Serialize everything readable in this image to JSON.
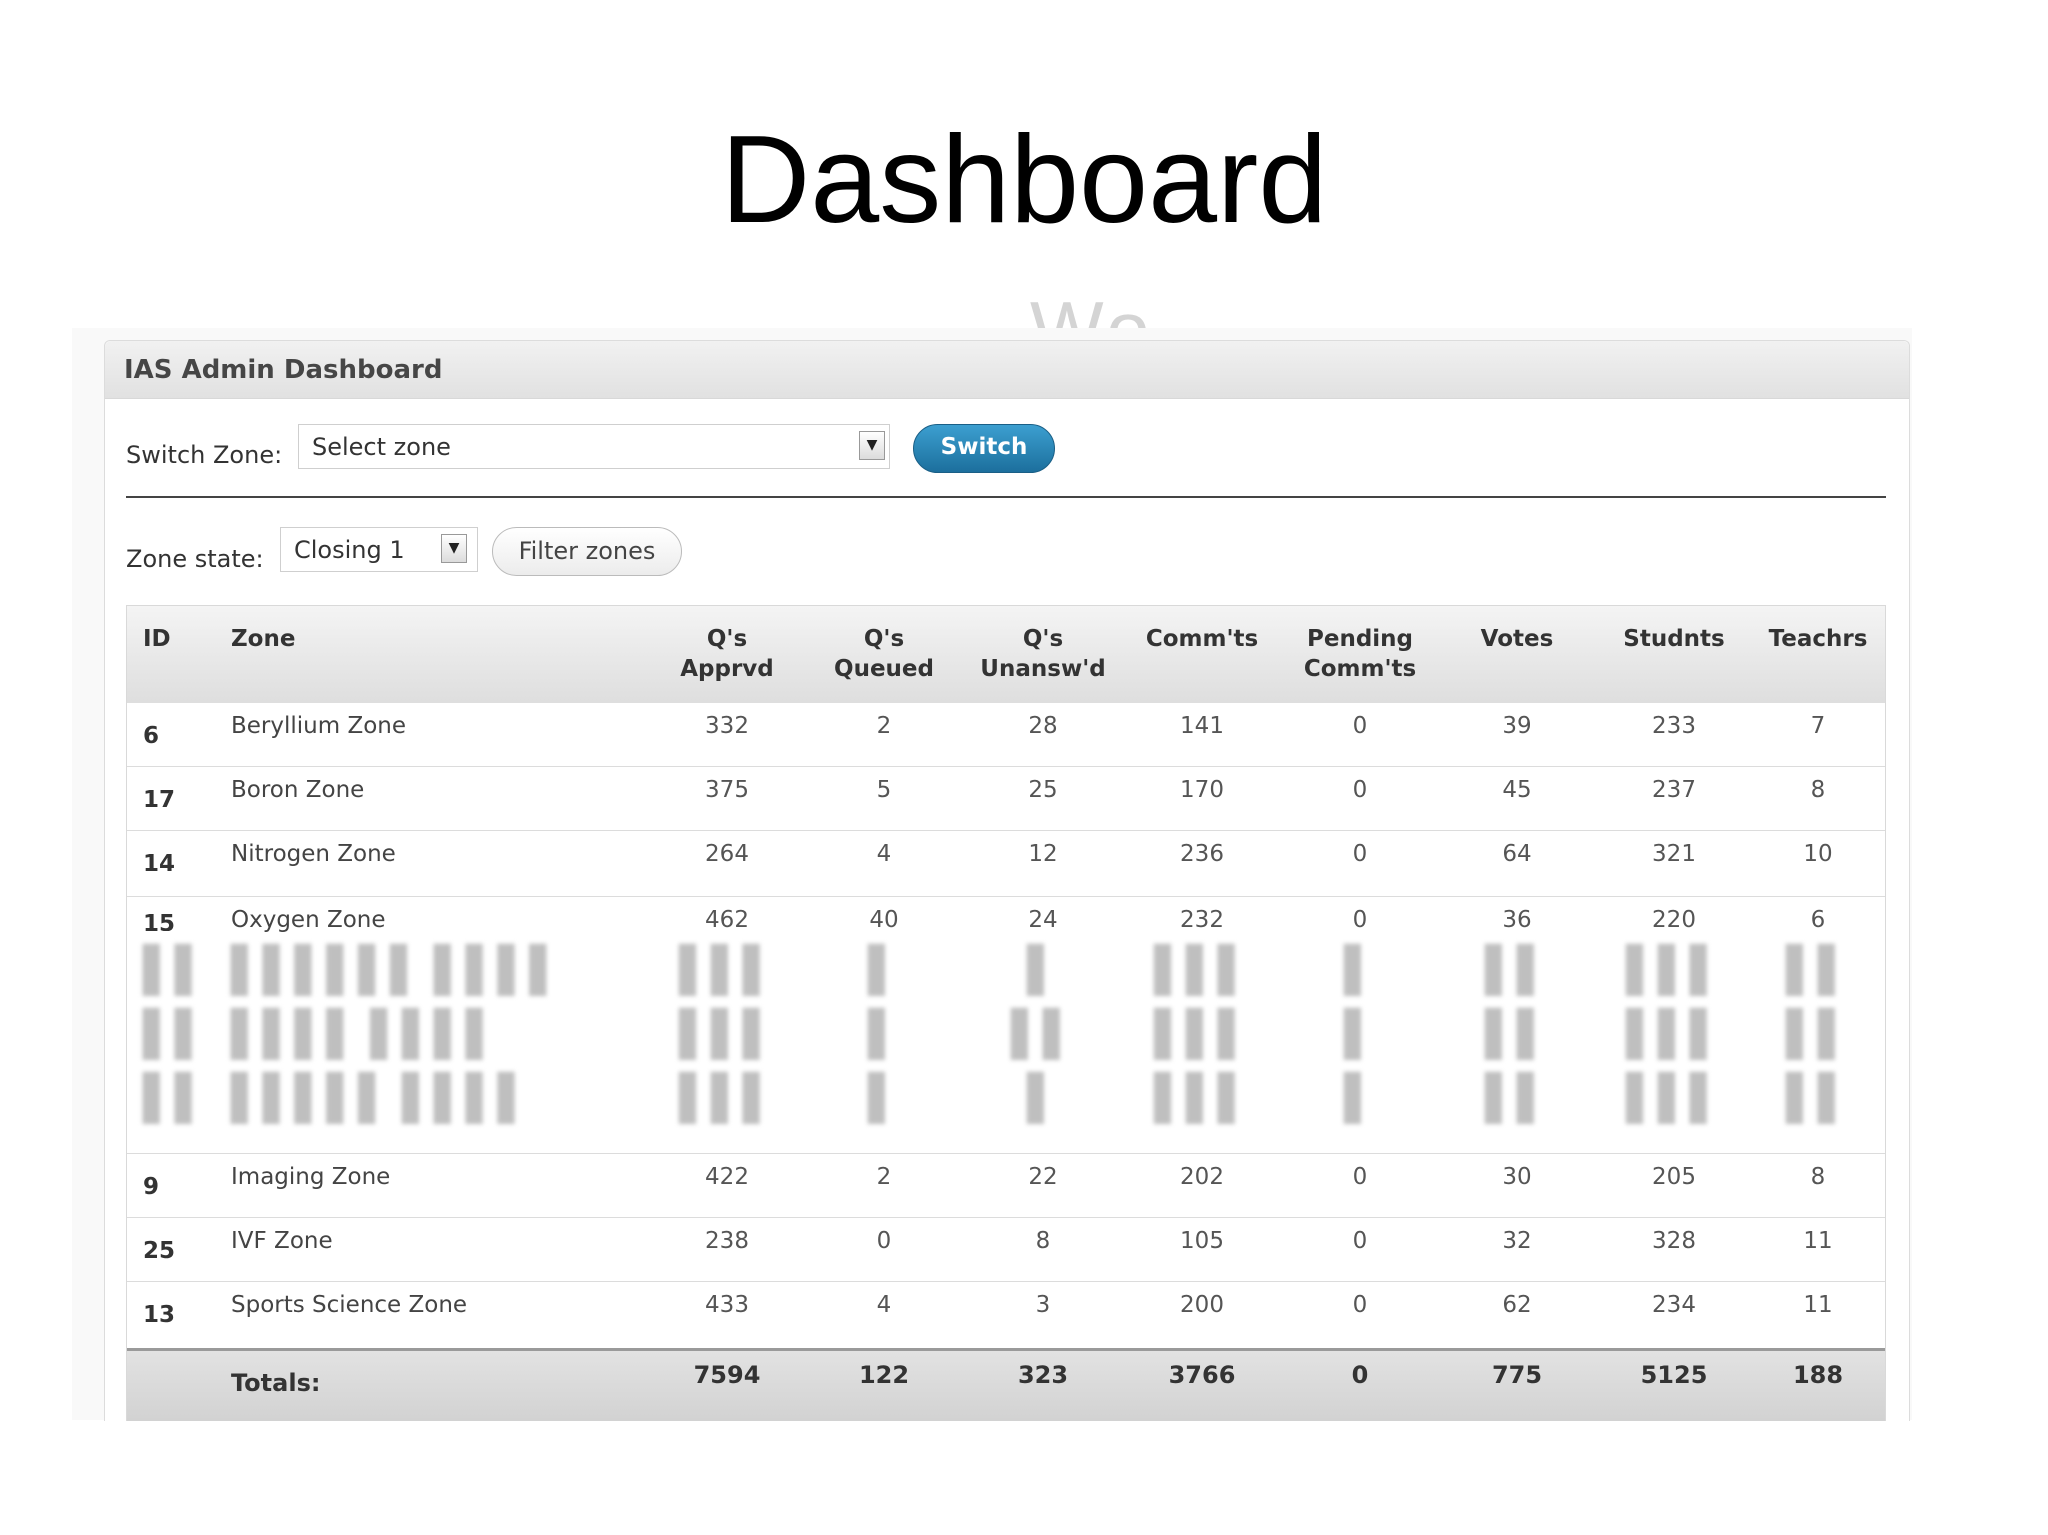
{
  "slide": {
    "title": "Dashboard",
    "background_text": "Wo"
  },
  "panel": {
    "title": "IAS Admin Dashboard",
    "switch_zone_label": "Switch Zone:",
    "switch_zone_select": "Select zone",
    "switch_button": "Switch",
    "zone_state_label": "Zone state:",
    "zone_state_select": "Closing 1",
    "filter_button": "Filter zones"
  },
  "table": {
    "headers": {
      "id": "ID",
      "zone": "Zone",
      "qs_apprvd_1": "Q's",
      "qs_apprvd_2": "Apprvd",
      "qs_queued_1": "Q's",
      "qs_queued_2": "Queued",
      "qs_unanswd_1": "Q's",
      "qs_unanswd_2": "Unansw'd",
      "comments": "Comm'ts",
      "pending_1": "Pending",
      "pending_2": "Comm'ts",
      "votes": "Votes",
      "students": "Studnts",
      "teachers": "Teachrs"
    },
    "rows": [
      {
        "id": "6",
        "zone": "Beryllium Zone",
        "approved": "332",
        "queued": "2",
        "unanswered": "28",
        "comments": "141",
        "pending": "0",
        "votes": "39",
        "students": "233",
        "teachers": "7"
      },
      {
        "id": "17",
        "zone": "Boron Zone",
        "approved": "375",
        "queued": "5",
        "unanswered": "25",
        "comments": "170",
        "pending": "0",
        "votes": "45",
        "students": "237",
        "teachers": "8"
      },
      {
        "id": "14",
        "zone": "Nitrogen Zone",
        "approved": "264",
        "queued": "4",
        "unanswered": "12",
        "comments": "236",
        "pending": "0",
        "votes": "64",
        "students": "321",
        "teachers": "10"
      },
      {
        "id": "15",
        "zone": "Oxygen Zone",
        "approved": "462",
        "queued": "40",
        "unanswered": "24",
        "comments": "232",
        "pending": "0",
        "votes": "36",
        "students": "220",
        "teachers": "6"
      },
      {
        "id": "9",
        "zone": "Imaging Zone",
        "approved": "422",
        "queued": "2",
        "unanswered": "22",
        "comments": "202",
        "pending": "0",
        "votes": "30",
        "students": "205",
        "teachers": "8"
      },
      {
        "id": "25",
        "zone": "IVF Zone",
        "approved": "238",
        "queued": "0",
        "unanswered": "8",
        "comments": "105",
        "pending": "0",
        "votes": "32",
        "students": "328",
        "teachers": "11"
      },
      {
        "id": "13",
        "zone": "Sports Science Zone",
        "approved": "433",
        "queued": "4",
        "unanswered": "3",
        "comments": "200",
        "pending": "0",
        "votes": "62",
        "students": "234",
        "teachers": "11"
      }
    ],
    "totals": {
      "label": "Totals:",
      "approved": "7594",
      "queued": "122",
      "unanswered": "323",
      "comments": "3766",
      "pending": "0",
      "votes": "775",
      "students": "5125",
      "teachers": "188"
    }
  },
  "colors": {
    "switch_button": "#2a86b8",
    "header_bg": "#e6e6e6",
    "totals_bg": "#d8d8d8"
  }
}
